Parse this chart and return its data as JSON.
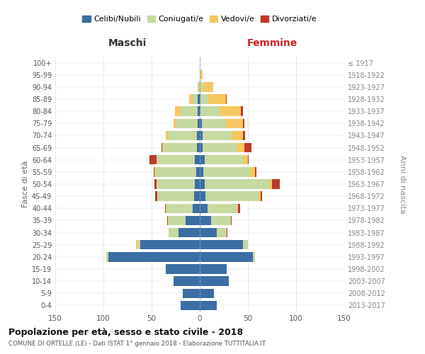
{
  "age_groups": [
    "0-4",
    "5-9",
    "10-14",
    "15-19",
    "20-24",
    "25-29",
    "30-34",
    "35-39",
    "40-44",
    "45-49",
    "50-54",
    "55-59",
    "60-64",
    "65-69",
    "70-74",
    "75-79",
    "80-84",
    "85-89",
    "90-94",
    "95-99",
    "100+"
  ],
  "birth_years": [
    "2013-2017",
    "2008-2012",
    "2003-2007",
    "1998-2002",
    "1993-1997",
    "1988-1992",
    "1983-1987",
    "1978-1982",
    "1973-1977",
    "1968-1972",
    "1963-1967",
    "1958-1962",
    "1953-1957",
    "1948-1952",
    "1943-1947",
    "1938-1942",
    "1933-1937",
    "1928-1932",
    "1923-1927",
    "1918-1922",
    "≤ 1917"
  ],
  "male": {
    "celibi": [
      20,
      18,
      27,
      35,
      95,
      62,
      22,
      15,
      7,
      6,
      5,
      4,
      5,
      3,
      3,
      2,
      2,
      2,
      0,
      0,
      0
    ],
    "coniugati": [
      0,
      0,
      0,
      0,
      2,
      3,
      10,
      18,
      28,
      38,
      40,
      42,
      40,
      35,
      30,
      22,
      18,
      5,
      1,
      0,
      0
    ],
    "vedovi": [
      0,
      0,
      0,
      0,
      0,
      1,
      0,
      0,
      0,
      0,
      0,
      1,
      0,
      1,
      2,
      3,
      6,
      4,
      1,
      0,
      0
    ],
    "divorziati": [
      0,
      0,
      0,
      0,
      0,
      0,
      0,
      1,
      1,
      2,
      2,
      1,
      7,
      1,
      0,
      0,
      0,
      0,
      0,
      0,
      0
    ]
  },
  "female": {
    "nubili": [
      18,
      15,
      30,
      28,
      55,
      45,
      18,
      12,
      8,
      6,
      5,
      4,
      5,
      3,
      3,
      2,
      1,
      1,
      0,
      0,
      0
    ],
    "coniugate": [
      0,
      0,
      0,
      0,
      2,
      5,
      10,
      20,
      32,
      55,
      68,
      48,
      40,
      35,
      30,
      25,
      20,
      8,
      4,
      1,
      0
    ],
    "vedove": [
      0,
      0,
      0,
      0,
      0,
      0,
      0,
      0,
      0,
      2,
      2,
      5,
      5,
      8,
      12,
      18,
      22,
      18,
      10,
      2,
      0
    ],
    "divorziate": [
      0,
      0,
      0,
      0,
      0,
      0,
      1,
      1,
      2,
      2,
      8,
      2,
      1,
      8,
      2,
      1,
      2,
      1,
      0,
      0,
      0
    ]
  },
  "colors": {
    "celibi": "#3a6ea5",
    "coniugati": "#c5d9a0",
    "vedovi": "#f5c860",
    "divorziati": "#c0392b"
  },
  "legend_labels": [
    "Celibi/Nubili",
    "Coniugati/e",
    "Vedovi/e",
    "Divorziati/e"
  ],
  "title": "Popolazione per età, sesso e stato civile - 2018",
  "subtitle": "COMUNE DI ORTELLE (LE) - Dati ISTAT 1° gennaio 2018 - Elaborazione TUTTITALIA.IT",
  "xlabel_left": "Maschi",
  "xlabel_right": "Femmine",
  "ylabel_left": "Fasce di età",
  "ylabel_right": "Anni di nascita",
  "xlim": 150,
  "background_color": "#ffffff",
  "grid_color": "#cccccc"
}
